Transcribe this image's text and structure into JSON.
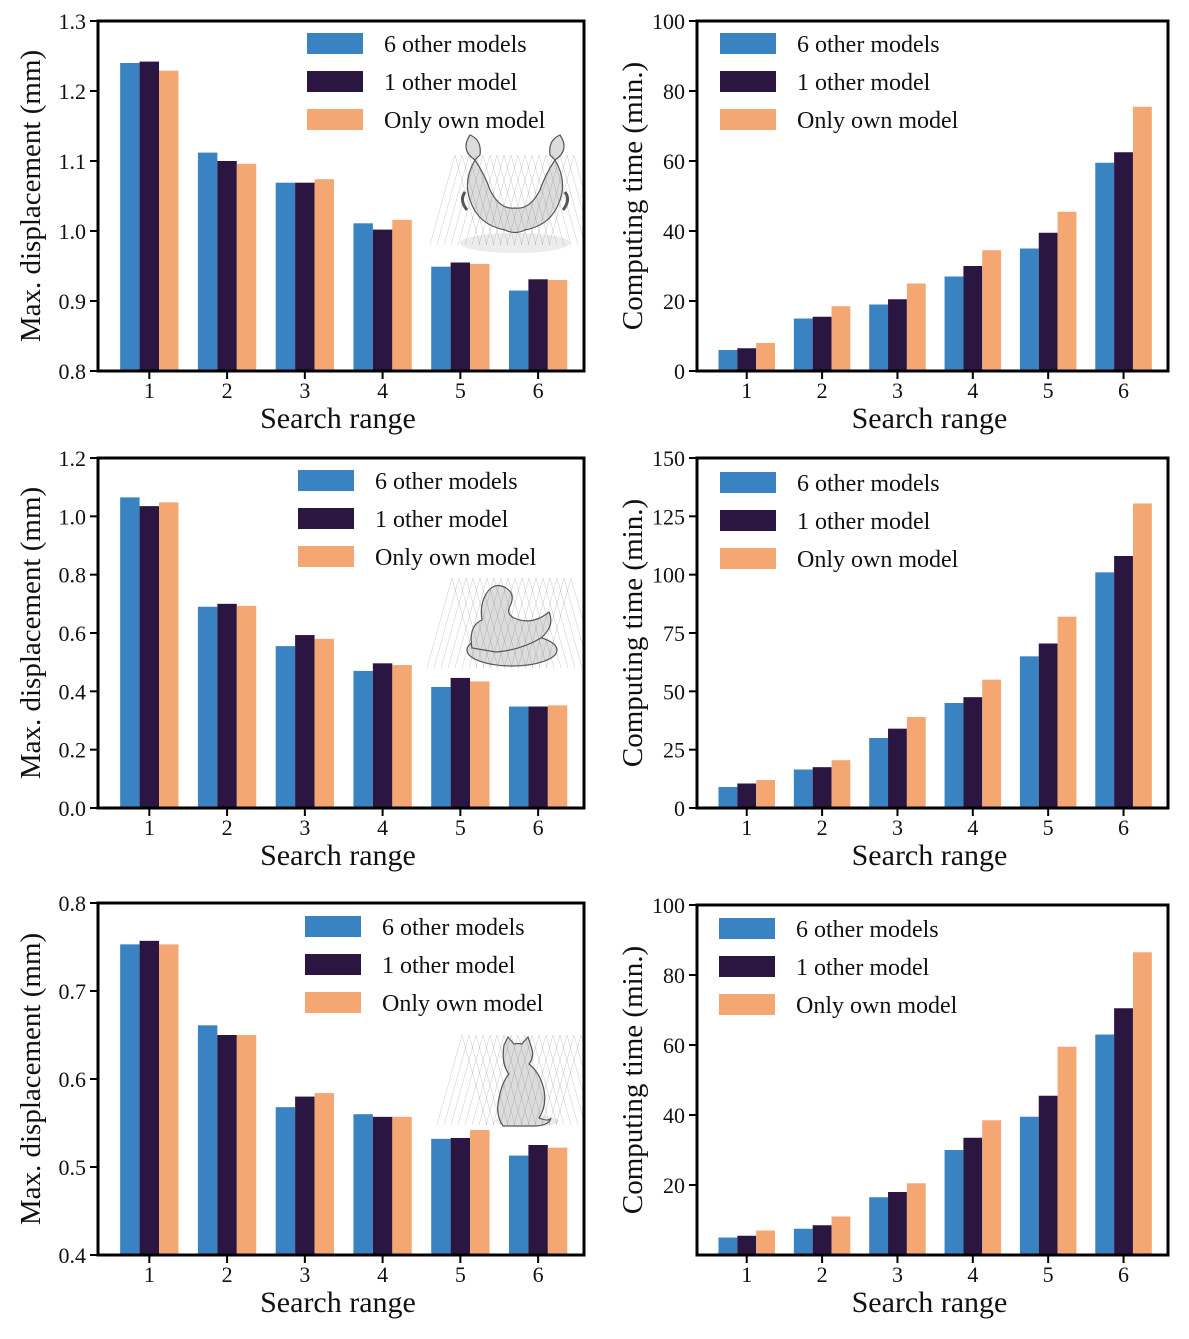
{
  "colors": {
    "6 other models": "#3a83c3",
    "1 other model": "#2a1640",
    "Only own model": "#f4a673"
  },
  "chart_data": [
    {
      "type": "bar",
      "categories": [
        "1",
        "2",
        "3",
        "4",
        "5",
        "6"
      ],
      "series": [
        {
          "name": "6 other models",
          "values": [
            1.24,
            1.112,
            1.069,
            1.011,
            0.949,
            0.915
          ]
        },
        {
          "name": "1 other model",
          "values": [
            1.242,
            1.1,
            1.069,
            1.002,
            0.955,
            0.931
          ]
        },
        {
          "name": "Only own model",
          "values": [
            1.229,
            1.096,
            1.074,
            1.016,
            0.953,
            0.93
          ]
        }
      ],
      "xlabel": "Search range",
      "ylabel": "Max. displacement (mm)",
      "ylim": [
        0.8,
        1.3
      ],
      "yticks": [
        "0.8",
        "0.9",
        "1.0",
        "1.1",
        "1.2",
        "1.3"
      ],
      "legend": "top-right",
      "inset_icon": "pelvis-mesh-icon"
    },
    {
      "type": "bar",
      "categories": [
        "1",
        "2",
        "3",
        "4",
        "5",
        "6"
      ],
      "series": [
        {
          "name": "6 other models",
          "values": [
            6,
            15,
            19,
            27,
            35,
            59.5
          ]
        },
        {
          "name": "1 other model",
          "values": [
            6.5,
            15.5,
            20.5,
            30,
            39.5,
            62.5
          ]
        },
        {
          "name": "Only own model",
          "values": [
            8,
            18.5,
            25,
            34.5,
            45.5,
            75.5
          ]
        }
      ],
      "xlabel": "Search range",
      "ylabel": "Computing time (min.)",
      "ylim": [
        0,
        100
      ],
      "yticks": [
        "0",
        "20",
        "40",
        "60",
        "80",
        "100"
      ],
      "legend": "top-left"
    },
    {
      "type": "bar",
      "categories": [
        "1",
        "2",
        "3",
        "4",
        "5",
        "6"
      ],
      "series": [
        {
          "name": "6 other models",
          "values": [
            1.065,
            0.69,
            0.555,
            0.47,
            0.415,
            0.348
          ]
        },
        {
          "name": "1 other model",
          "values": [
            1.035,
            0.7,
            0.593,
            0.496,
            0.446,
            0.348
          ]
        },
        {
          "name": "Only own model",
          "values": [
            1.048,
            0.693,
            0.58,
            0.49,
            0.434,
            0.352
          ]
        }
      ],
      "xlabel": "Search range",
      "ylabel": "Max. displacement (mm)",
      "ylim": [
        0.0,
        1.2
      ],
      "yticks": [
        "0.0",
        "0.2",
        "0.4",
        "0.6",
        "0.8",
        "1.0",
        "1.2"
      ],
      "legend": "top-right",
      "inset_icon": "duck-mesh-icon"
    },
    {
      "type": "bar",
      "categories": [
        "1",
        "2",
        "3",
        "4",
        "5",
        "6"
      ],
      "series": [
        {
          "name": "6 other models",
          "values": [
            9,
            16.5,
            30,
            45,
            65,
            101
          ]
        },
        {
          "name": "1 other model",
          "values": [
            10.5,
            17.5,
            34,
            47.5,
            70.5,
            108
          ]
        },
        {
          "name": "Only own model",
          "values": [
            12,
            20.5,
            39,
            55,
            82,
            130.5
          ]
        }
      ],
      "xlabel": "Search range",
      "ylabel": "Computing time (min.)",
      "ylim": [
        0,
        150
      ],
      "yticks": [
        "0",
        "25",
        "50",
        "75",
        "100",
        "125",
        "150"
      ],
      "legend": "top-left"
    },
    {
      "type": "bar",
      "categories": [
        "1",
        "2",
        "3",
        "4",
        "5",
        "6"
      ],
      "series": [
        {
          "name": "6 other models",
          "values": [
            0.753,
            0.661,
            0.568,
            0.56,
            0.532,
            0.513
          ]
        },
        {
          "name": "1 other model",
          "values": [
            0.757,
            0.65,
            0.58,
            0.557,
            0.533,
            0.525
          ]
        },
        {
          "name": "Only own model",
          "values": [
            0.753,
            0.65,
            0.584,
            0.557,
            0.542,
            0.522
          ]
        }
      ],
      "xlabel": "Search range",
      "ylabel": "Max. displacement (mm)",
      "ylim": [
        0.4,
        0.8
      ],
      "yticks": [
        "0.4",
        "0.5",
        "0.6",
        "0.7",
        "0.8"
      ],
      "legend": "top-right",
      "inset_icon": "cat-mesh-icon"
    },
    {
      "type": "bar",
      "categories": [
        "1",
        "2",
        "3",
        "4",
        "5",
        "6"
      ],
      "series": [
        {
          "name": "6 other models",
          "values": [
            5,
            7.5,
            16.5,
            30,
            39.5,
            63
          ]
        },
        {
          "name": "1 other model",
          "values": [
            5.5,
            8.5,
            18,
            33.5,
            45.5,
            70.5
          ]
        },
        {
          "name": "Only own model",
          "values": [
            7,
            11,
            20.5,
            38.5,
            59.5,
            86.5
          ]
        }
      ],
      "xlabel": "Search range",
      "ylabel": "Computing time (min.)",
      "ylim": [
        0,
        100
      ],
      "yticks": [
        "20",
        "40",
        "60",
        "80",
        "100"
      ],
      "legend": "top-left"
    }
  ]
}
